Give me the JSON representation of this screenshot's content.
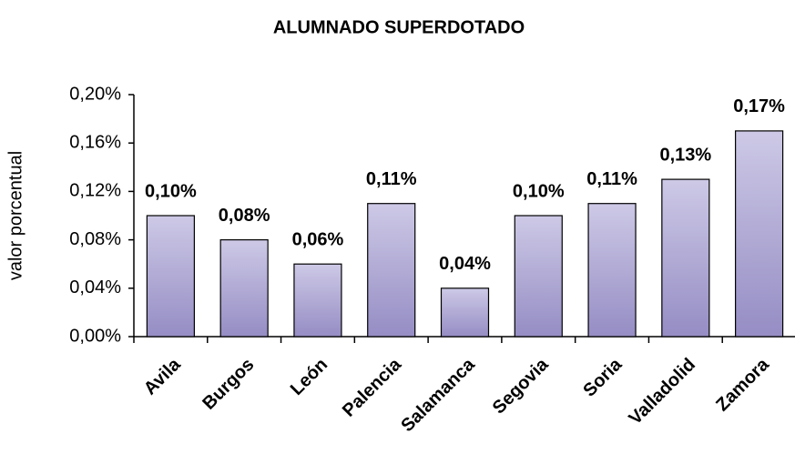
{
  "chart_data": {
    "type": "bar",
    "title": "ALUMNADO SUPERDOTADO",
    "y_label": "valor porcentual",
    "categories": [
      "Avila",
      "Burgos",
      "León",
      "Palencia",
      "Salamanca",
      "Segovia",
      "Soria",
      "Valladolid",
      "Zamora"
    ],
    "values": [
      0.1,
      0.08,
      0.06,
      0.11,
      0.04,
      0.1,
      0.11,
      0.13,
      0.17
    ],
    "value_labels": [
      "0,10%",
      "0,08%",
      "0,06%",
      "0,11%",
      "0,04%",
      "0,10%",
      "0,11%",
      "0,13%",
      "0,17%"
    ],
    "color": "#a9a3d2",
    "ylim": [
      0,
      0.2
    ],
    "yticks": [
      {
        "value": 0,
        "label": "0,00%"
      },
      {
        "value": 0.04,
        "label": "0,04%"
      },
      {
        "value": 0.08,
        "label": "0,08%"
      },
      {
        "value": 0.12,
        "label": "0,12%"
      },
      {
        "value": 0.16,
        "label": "0,16%"
      },
      {
        "value": 0.2,
        "label": "0,20%"
      }
    ],
    "grid": false
  }
}
